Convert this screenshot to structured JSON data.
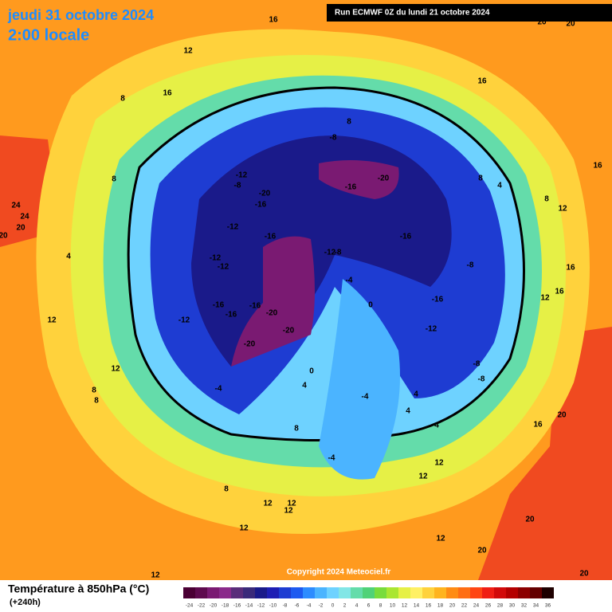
{
  "header": {
    "date": "jeudi 31 octobre 2024",
    "time": "2:00 locale",
    "run": "Run ECMWF 0Z du lundi 21 octobre 2024"
  },
  "map": {
    "copyright": "Copyright 2024 Meteociel.fr",
    "labels": [
      "20",
      "20",
      "16",
      "12",
      "16",
      "8",
      "16",
      "8",
      "-8",
      "16",
      "8",
      "4",
      "8",
      "12",
      "-12",
      "-8",
      "-20",
      "-16",
      "-16",
      "-20",
      "8",
      "24",
      "24",
      "20",
      "20",
      "-12",
      "-16",
      "-16",
      "-12",
      "-12",
      "-12",
      "-8",
      "-8",
      "16",
      "4",
      "-4",
      "16",
      "12",
      "-16",
      "-16",
      "-16",
      "-20",
      "-16",
      "0",
      "-12",
      "-20",
      "-12",
      "12",
      "-20",
      "-8",
      "-8",
      "12",
      "0",
      "4",
      "8",
      "-4",
      "8",
      "4",
      "4",
      "20",
      "16",
      "8",
      "4",
      "-4",
      "12",
      "12",
      "-4",
      "8",
      "12",
      "12",
      "12",
      "12",
      "12",
      "20",
      "20",
      "12",
      "20"
    ]
  },
  "legend": {
    "title": "Température à 850hPa (°C)",
    "subtitle": "(+240h)",
    "ticks": [
      -24,
      -22,
      -20,
      -18,
      -16,
      -14,
      -12,
      -10,
      -8,
      -6,
      -4,
      -2,
      0,
      2,
      4,
      6,
      8,
      10,
      12,
      14,
      16,
      18,
      20,
      22,
      24,
      26,
      28,
      30,
      32,
      34,
      36
    ],
    "colors": [
      "#4a0034",
      "#5e0a4e",
      "#7a1a72",
      "#8a2a8a",
      "#5a2d7a",
      "#3a2a7a",
      "#1a1a8a",
      "#1e1eb4",
      "#1e3cd2",
      "#1e5af0",
      "#2d8cff",
      "#4bb4ff",
      "#6ed2ff",
      "#82e6e6",
      "#64dcaa",
      "#50d278",
      "#78dc3c",
      "#aae632",
      "#e6f046",
      "#fff064",
      "#ffd23c",
      "#ffb41e",
      "#ff8c14",
      "#ff6e14",
      "#ff4614",
      "#f01e14",
      "#d20a0a",
      "#b40000",
      "#8c0000",
      "#640000",
      "#1e0000"
    ]
  }
}
